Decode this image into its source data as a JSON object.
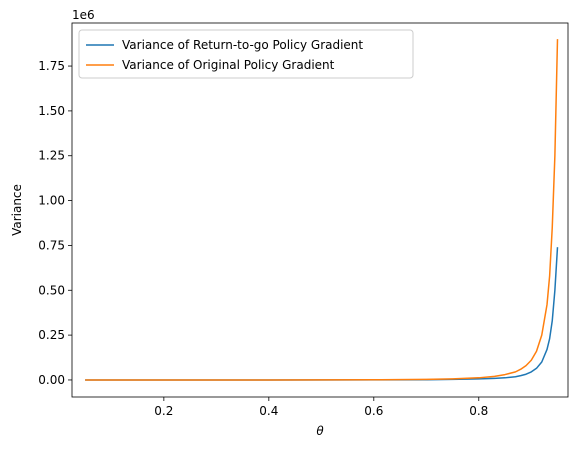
{
  "chart_data": {
    "type": "line",
    "title": "",
    "xlabel": "θ",
    "ylabel": "Variance",
    "y_offset_label": "1e6",
    "xlim": [
      0.025,
      0.97
    ],
    "ylim": [
      -0.095,
      1.99
    ],
    "y_scale_factor": 1000000,
    "x_ticks": [
      0.2,
      0.4,
      0.6,
      0.8
    ],
    "x_tick_labels": [
      "0.2",
      "0.4",
      "0.6",
      "0.8"
    ],
    "y_ticks": [
      0.0,
      0.25,
      0.5,
      0.75,
      1.0,
      1.25,
      1.5,
      1.75
    ],
    "y_tick_labels": [
      "0.00",
      "0.25",
      "0.50",
      "0.75",
      "1.00",
      "1.25",
      "1.50",
      "1.75"
    ],
    "grid": false,
    "legend_position": "top-left",
    "series": [
      {
        "name": "Variance of Return-to-go Policy Gradient",
        "color": "#1f77b4",
        "x": [
          0.05,
          0.2,
          0.4,
          0.6,
          0.7,
          0.75,
          0.8,
          0.83,
          0.85,
          0.87,
          0.88,
          0.89,
          0.9,
          0.91,
          0.92,
          0.93,
          0.935,
          0.94,
          0.945,
          0.95
        ],
        "y": [
          0.0,
          0.0,
          0.0,
          0.0005,
          0.0015,
          0.003,
          0.006,
          0.009,
          0.012,
          0.018,
          0.024,
          0.032,
          0.045,
          0.065,
          0.1,
          0.17,
          0.23,
          0.33,
          0.5,
          0.74
        ]
      },
      {
        "name": "Variance of Original Policy Gradient",
        "color": "#ff7f0e",
        "x": [
          0.05,
          0.2,
          0.4,
          0.6,
          0.7,
          0.75,
          0.8,
          0.83,
          0.85,
          0.87,
          0.88,
          0.89,
          0.9,
          0.91,
          0.92,
          0.93,
          0.935,
          0.94,
          0.945,
          0.95
        ],
        "y": [
          0.0,
          0.0,
          0.0,
          0.001,
          0.003,
          0.006,
          0.012,
          0.02,
          0.03,
          0.045,
          0.06,
          0.08,
          0.11,
          0.16,
          0.25,
          0.42,
          0.58,
          0.85,
          1.25,
          1.9
        ]
      }
    ]
  }
}
